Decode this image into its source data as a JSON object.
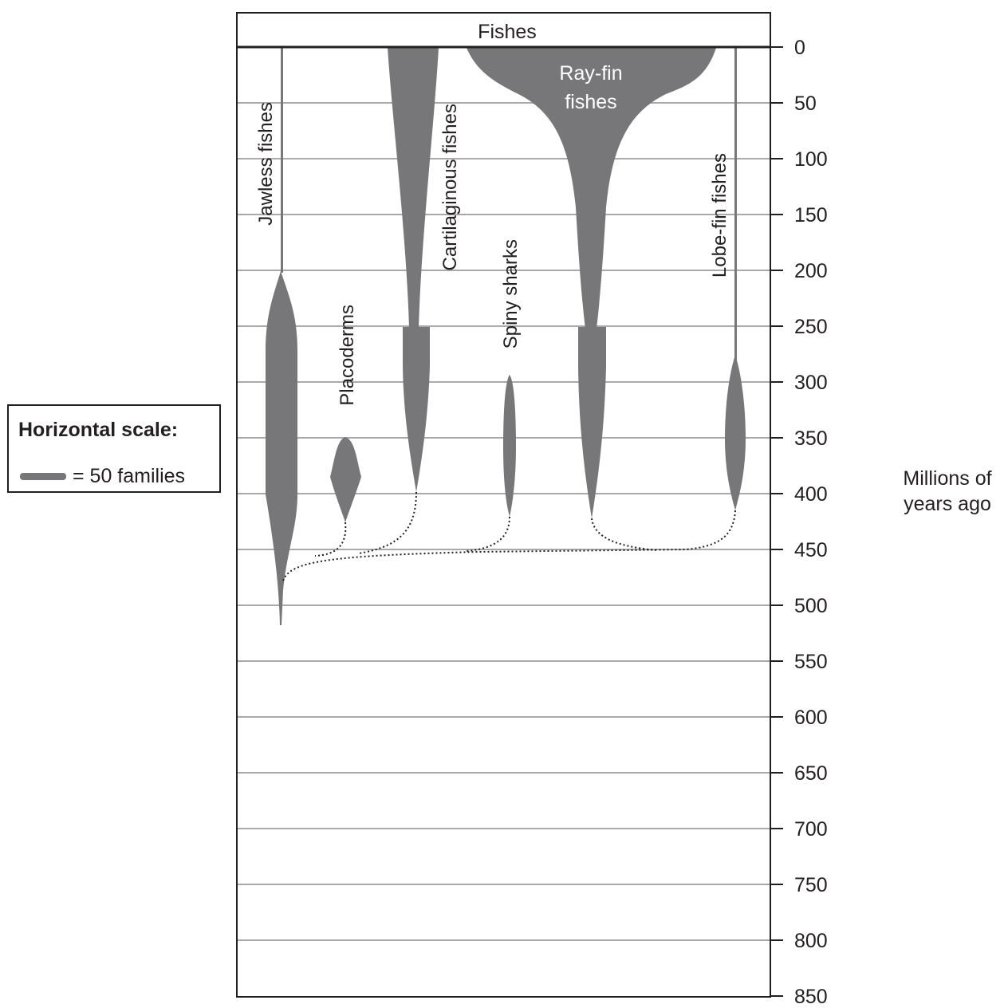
{
  "diagram": {
    "header": "Fishes",
    "groups": [
      {
        "name": "Jawless fishes"
      },
      {
        "name": "Placoderms"
      },
      {
        "name": "Cartilaginous fishes"
      },
      {
        "name": "Spiny sharks"
      },
      {
        "name": "Ray-fin",
        "name2": "fishes"
      },
      {
        "name": "Lobe-fin fishes"
      }
    ]
  },
  "axis": {
    "ticks": [
      "0",
      "50",
      "100",
      "150",
      "200",
      "250",
      "300",
      "350",
      "400",
      "450",
      "500",
      "550",
      "600",
      "650",
      "700",
      "750",
      "800",
      "850"
    ],
    "unit_line1": "Millions of",
    "unit_line2": "years ago"
  },
  "legend": {
    "title": "Horizontal scale:",
    "item": "= 50 families"
  },
  "colors": {
    "fill": "#77777a",
    "grid": "#a7a9ac",
    "line": "#231f20"
  }
}
